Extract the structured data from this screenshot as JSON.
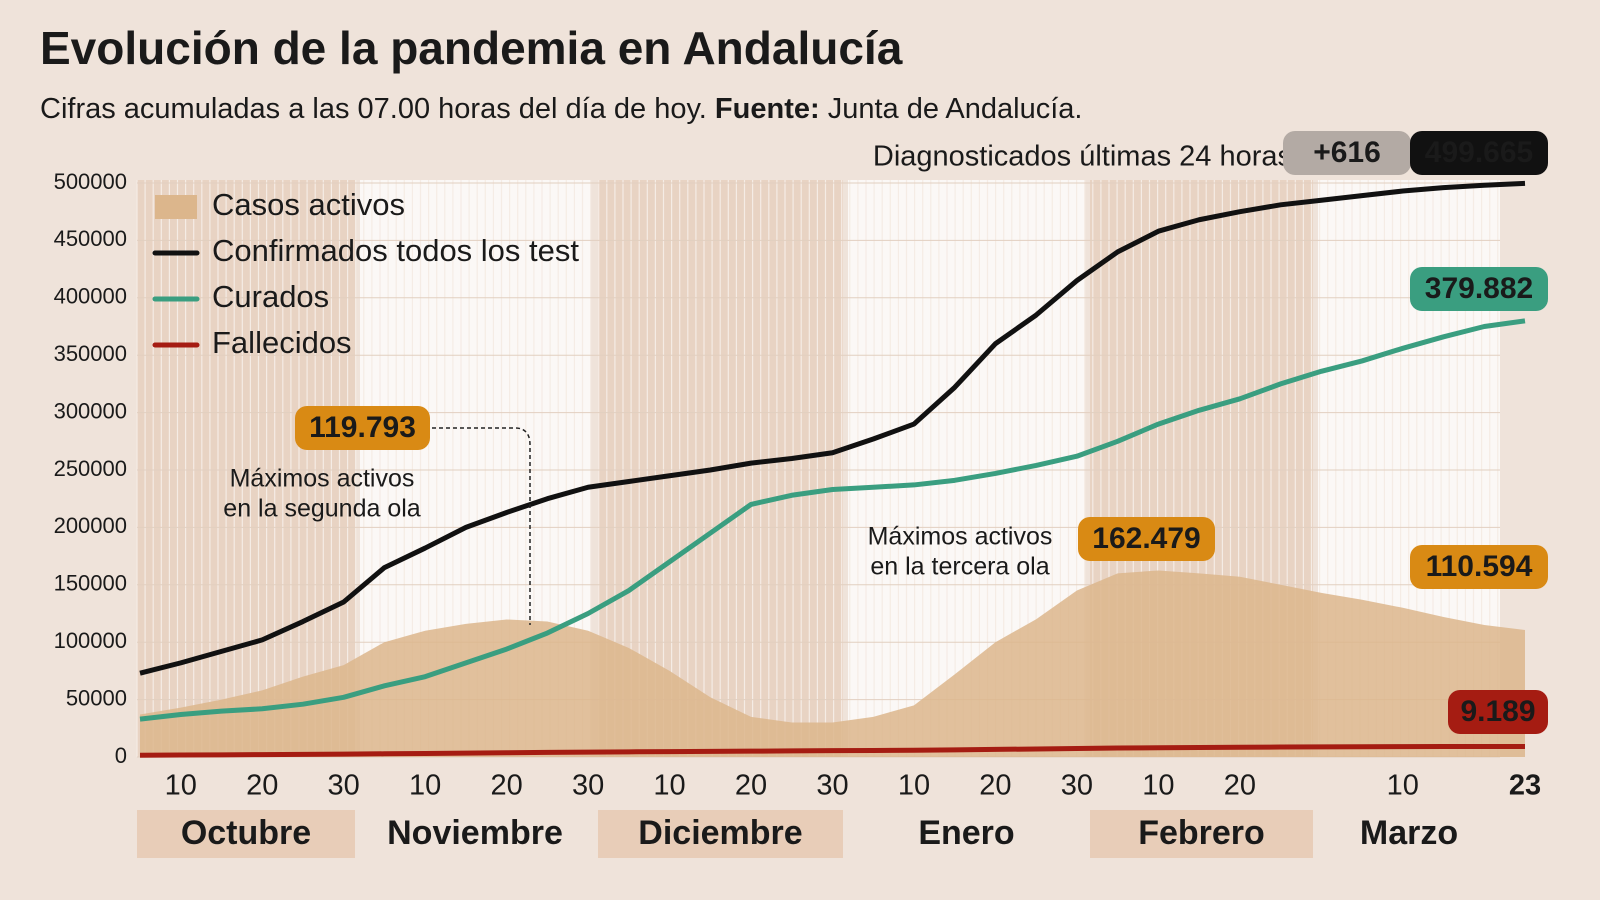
{
  "chart_data": {
    "type": "line",
    "title": "Evolución de la pandemia en Andalucía",
    "subtitle": [
      "Cifras acumuladas a las 07.00 horas del día de hoy.",
      "Fuente:",
      "Junta de Andalucía."
    ],
    "daily_new": {
      "label": "Diagnosticados últimas 24 horas",
      "value": 616,
      "value_label": "+616"
    },
    "categories": [
      null,
      "10",
      null,
      "20",
      null,
      "30",
      null,
      "10",
      null,
      "20",
      null,
      "30",
      null,
      "10",
      null,
      "20",
      null,
      "30",
      null,
      "10",
      null,
      "20",
      null,
      "30",
      null,
      "10",
      null,
      "20",
      null,
      null,
      null,
      "10",
      null,
      null,
      "23"
    ],
    "months": [
      "Octubre",
      "Noviembre",
      "Diciembre",
      "Enero",
      "Febrero",
      "Marzo"
    ],
    "ylim": [
      0,
      500000
    ],
    "yticks": [
      0,
      50000,
      100000,
      150000,
      200000,
      250000,
      300000,
      350000,
      400000,
      450000,
      500000
    ],
    "series": [
      {
        "name": "Casos activos",
        "style": "area",
        "color": "#dcb68c",
        "label_color": "#d98a14",
        "values": [
          37000,
          43000,
          50000,
          58000,
          70000,
          80000,
          100000,
          110000,
          116000,
          119793,
          118000,
          110000,
          95000,
          75000,
          52000,
          35000,
          30000,
          30000,
          35000,
          45000,
          72000,
          100000,
          120000,
          145000,
          160000,
          162479,
          160000,
          157000,
          150000,
          143000,
          137000,
          130000,
          122000,
          115000,
          110594
        ],
        "value_labels": [
          null,
          null,
          null,
          null,
          null,
          null,
          null,
          null,
          null,
          "119.793",
          null,
          null,
          null,
          null,
          null,
          null,
          null,
          null,
          null,
          null,
          null,
          null,
          null,
          null,
          null,
          "162.479",
          null,
          null,
          null,
          null,
          null,
          null,
          null,
          null,
          "110.594"
        ]
      },
      {
        "name": "Confirmados todos los test",
        "style": "line",
        "color": "#111111",
        "label_color": "#111111",
        "values": [
          73000,
          82000,
          92000,
          102000,
          118000,
          135000,
          165000,
          182000,
          200000,
          213000,
          225000,
          235000,
          240000,
          245000,
          250000,
          256000,
          260000,
          265000,
          277000,
          290000,
          322000,
          360000,
          385000,
          415000,
          440000,
          458000,
          468000,
          475000,
          481000,
          485000,
          489000,
          493000,
          496000,
          498000,
          499665
        ],
        "value_labels": [
          null,
          null,
          null,
          null,
          null,
          null,
          null,
          null,
          null,
          null,
          null,
          null,
          null,
          null,
          null,
          null,
          null,
          null,
          null,
          null,
          null,
          null,
          null,
          null,
          null,
          null,
          null,
          null,
          null,
          null,
          null,
          null,
          null,
          null,
          "499.665"
        ]
      },
      {
        "name": "Curados",
        "style": "line",
        "color": "#3a9e80",
        "label_color": "#3a9e80",
        "values": [
          33000,
          37000,
          40000,
          42000,
          46000,
          52000,
          62000,
          70000,
          82000,
          94000,
          108000,
          125000,
          145000,
          170000,
          195000,
          220000,
          228000,
          233000,
          235000,
          237000,
          241000,
          247000,
          254000,
          262000,
          275000,
          290000,
          302000,
          312000,
          325000,
          336000,
          345000,
          356000,
          366000,
          375000,
          379882
        ],
        "value_labels": [
          null,
          null,
          null,
          null,
          null,
          null,
          null,
          null,
          null,
          null,
          null,
          null,
          null,
          null,
          null,
          null,
          null,
          null,
          null,
          null,
          null,
          null,
          null,
          null,
          null,
          null,
          null,
          null,
          null,
          null,
          null,
          null,
          null,
          null,
          "379.882"
        ]
      },
      {
        "name": "Fallecidos",
        "style": "line",
        "color": "#a51c12",
        "label_color": "#a51c12",
        "values": [
          1500,
          1700,
          1900,
          2100,
          2300,
          2500,
          2800,
          3100,
          3400,
          3700,
          4000,
          4300,
          4500,
          4700,
          4900,
          5100,
          5300,
          5500,
          5700,
          5900,
          6200,
          6600,
          7000,
          7400,
          7800,
          8100,
          8300,
          8500,
          8700,
          8850,
          8950,
          9050,
          9100,
          9150,
          9189
        ],
        "value_labels": [
          null,
          null,
          null,
          null,
          null,
          null,
          null,
          null,
          null,
          null,
          null,
          null,
          null,
          null,
          null,
          null,
          null,
          null,
          null,
          null,
          null,
          null,
          null,
          null,
          null,
          null,
          null,
          null,
          null,
          null,
          null,
          null,
          null,
          null,
          "9.189"
        ]
      }
    ],
    "annotations": [
      {
        "lines": [
          "Máximos activos",
          "en la segunda ola"
        ]
      },
      {
        "lines": [
          "Máximos activos",
          "en la tercera ola"
        ]
      }
    ]
  }
}
